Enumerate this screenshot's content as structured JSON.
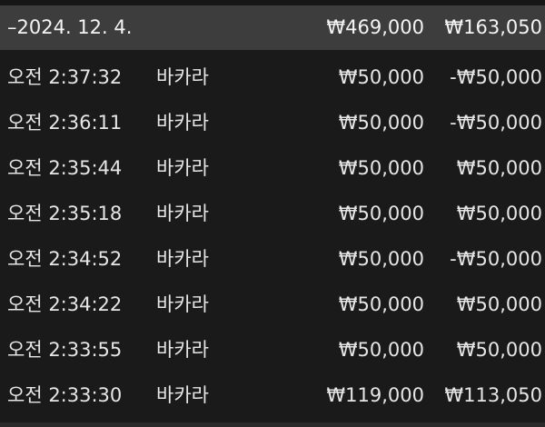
{
  "group": {
    "date": "–2024. 12. 4.",
    "bet_total": "₩469,000",
    "result_total": "₩163,050"
  },
  "rows": [
    {
      "time": "오전 2:37:32",
      "game": "바카라",
      "bet": "₩50,000",
      "result": "-₩50,000"
    },
    {
      "time": "오전 2:36:11",
      "game": "바카라",
      "bet": "₩50,000",
      "result": "-₩50,000"
    },
    {
      "time": "오전 2:35:44",
      "game": "바카라",
      "bet": "₩50,000",
      "result": "₩50,000"
    },
    {
      "time": "오전 2:35:18",
      "game": "바카라",
      "bet": "₩50,000",
      "result": "₩50,000"
    },
    {
      "time": "오전 2:34:52",
      "game": "바카라",
      "bet": "₩50,000",
      "result": "-₩50,000"
    },
    {
      "time": "오전 2:34:22",
      "game": "바카라",
      "bet": "₩50,000",
      "result": "₩50,000"
    },
    {
      "time": "오전 2:33:55",
      "game": "바카라",
      "bet": "₩50,000",
      "result": "₩50,000"
    },
    {
      "time": "오전 2:33:30",
      "game": "바카라",
      "bet": "₩119,000",
      "result": "₩113,050"
    }
  ]
}
